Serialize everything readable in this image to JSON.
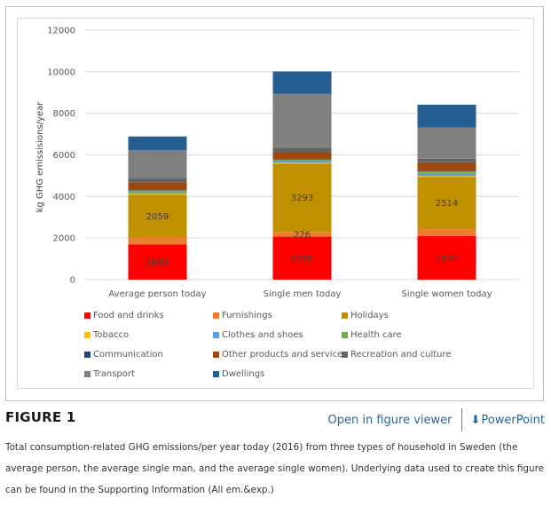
{
  "figure": {
    "title": "FIGURE 1",
    "open_viewer_label": "Open in figure viewer",
    "powerpoint_label": "PowerPoint",
    "download_icon": "download-icon",
    "caption": "Total consumption-related GHG emissions/per year today (2016) from three types of household in Sweden (the average person, the average single man, and the average single women). Underlying data used to create this figure can be found in the Supporting Information (All em.&exp.)"
  },
  "chart_data": {
    "type": "bar",
    "stacked": true,
    "title": "",
    "xlabel": "",
    "ylabel": "kg GHG emissisions/year",
    "ylim": [
      0,
      12000
    ],
    "yticks": [
      0,
      2000,
      4000,
      6000,
      8000,
      10000,
      12000
    ],
    "grid": true,
    "legend_position": "bottom",
    "categories": [
      "Average person today",
      "Single men today",
      "Single women today"
    ],
    "series": [
      {
        "name": "Food and drinks",
        "color": "#ff0000",
        "values": [
          1688,
          2068,
          2102
        ],
        "labeled": true
      },
      {
        "name": "Furnishings",
        "color": "#ed7d31",
        "values": [
          340,
          226,
          330
        ],
        "labeled": [
          false,
          true,
          false
        ]
      },
      {
        "name": "Holidays",
        "color": "#bf9000",
        "values": [
          2059,
          3293,
          2514
        ],
        "labeled": true
      },
      {
        "name": "Tobacco",
        "color": "#ffc000",
        "values": [
          40,
          50,
          40
        ],
        "labeled": false
      },
      {
        "name": "Clothes and shoes",
        "color": "#5b9bd5",
        "values": [
          70,
          60,
          100
        ],
        "labeled": false
      },
      {
        "name": "Health care",
        "color": "#70ad47",
        "values": [
          90,
          60,
          120
        ],
        "labeled": false
      },
      {
        "name": "Communication",
        "color": "#264478",
        "values": [
          20,
          20,
          20
        ],
        "labeled": false
      },
      {
        "name": "Other products and services",
        "color": "#9e480e",
        "values": [
          380,
          350,
          420
        ],
        "labeled": false
      },
      {
        "name": "Recreation and culture",
        "color": "#636363",
        "values": [
          180,
          220,
          170
        ],
        "labeled": false
      },
      {
        "name": "Transport",
        "color": "#7f7f7f",
        "values": [
          1370,
          2600,
          1500
        ],
        "labeled": false
      },
      {
        "name": "Dwellings",
        "color": "#255e91",
        "values": [
          650,
          1070,
          1100
        ],
        "labeled": false
      }
    ]
  }
}
